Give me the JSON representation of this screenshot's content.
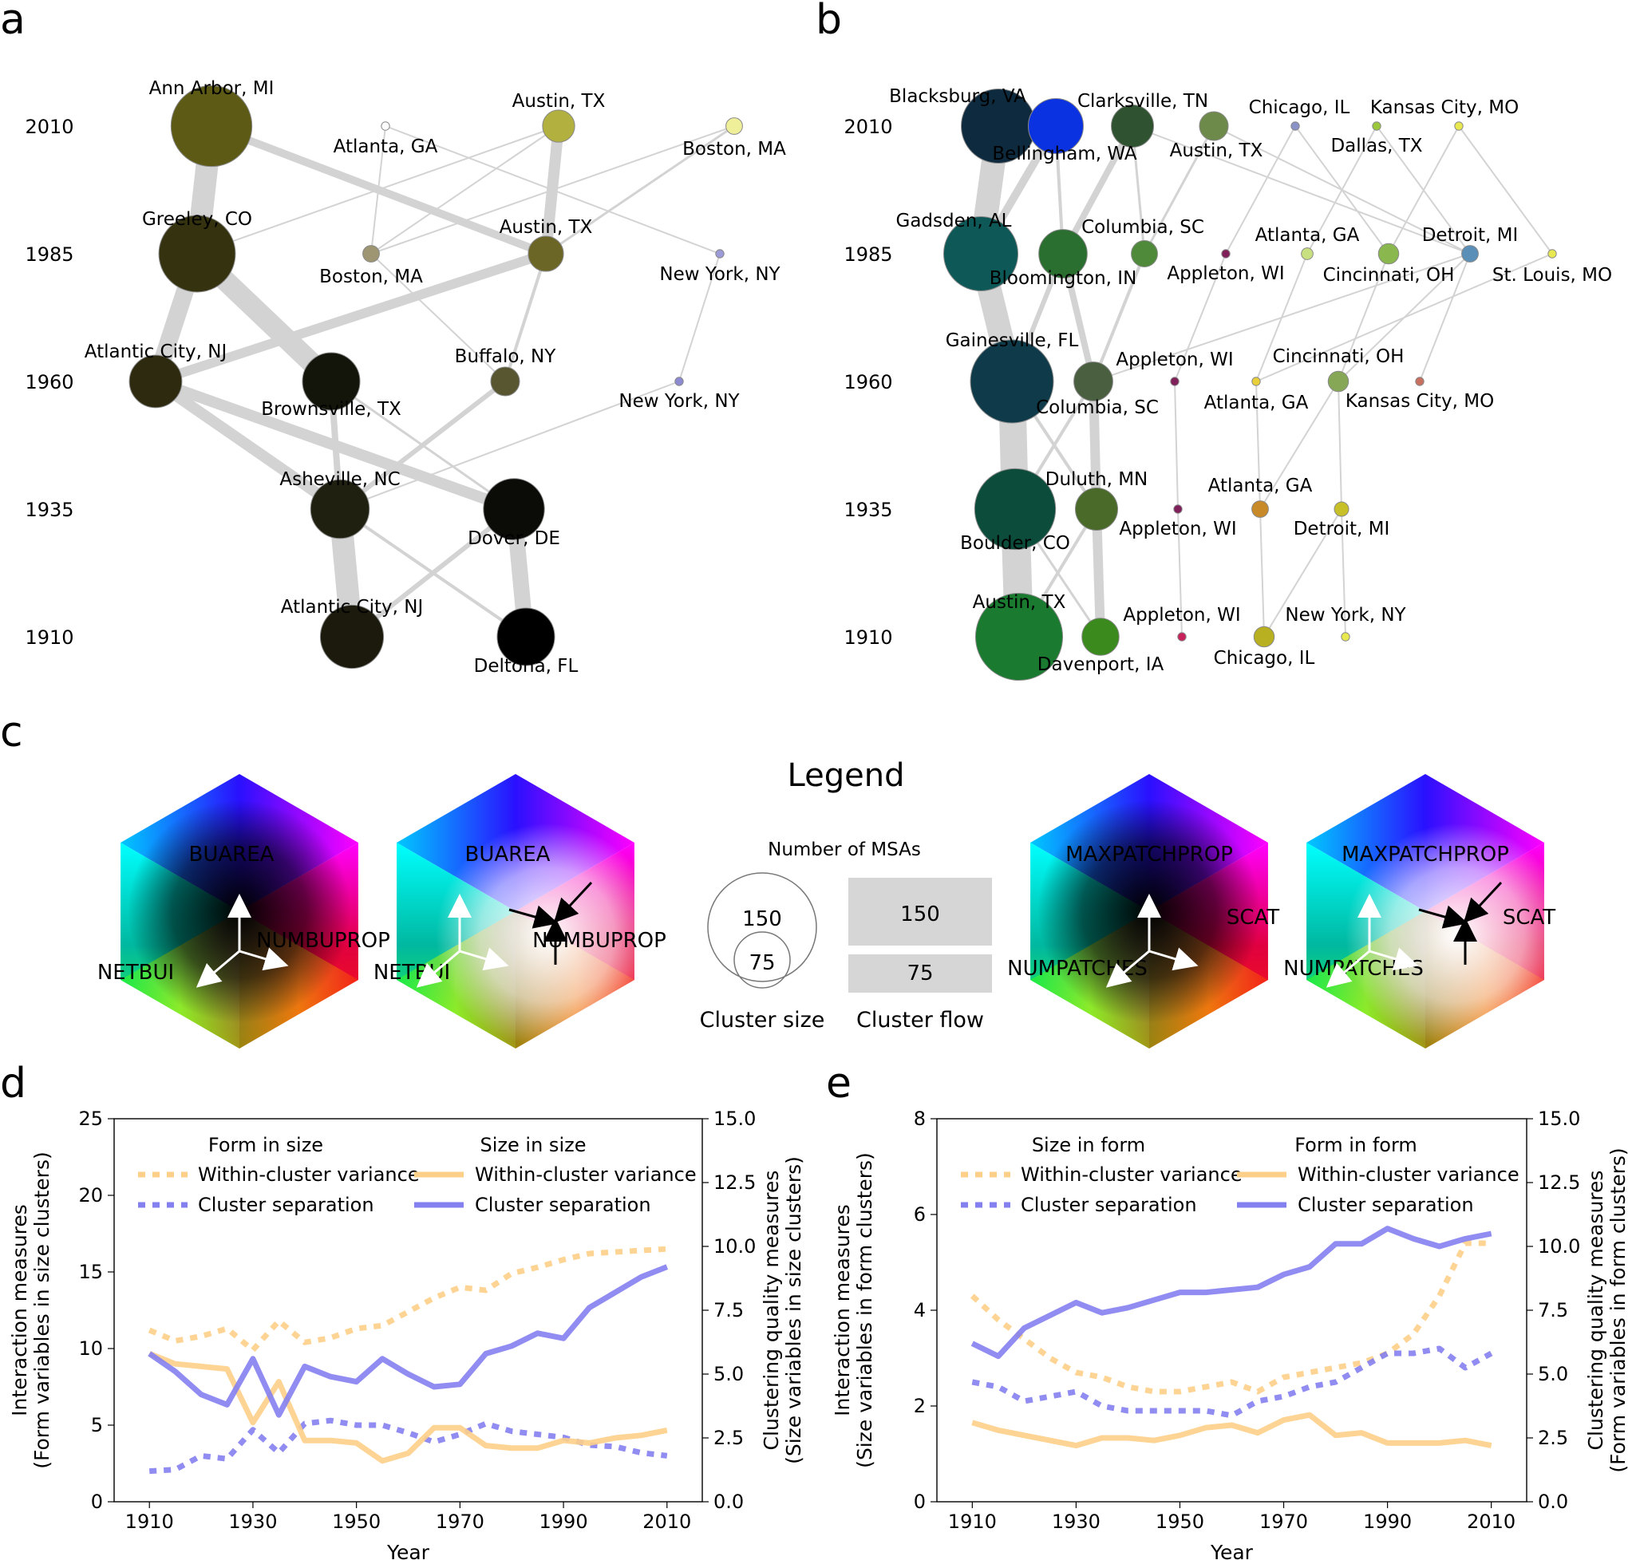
{
  "panels": {
    "a": "a",
    "b": "b",
    "c": "c",
    "d": "d",
    "e": "e"
  },
  "years": [
    "1910",
    "1935",
    "1960",
    "1985",
    "2010"
  ],
  "legend": {
    "title": "Legend",
    "msas": "Number of MSAs",
    "big": "150",
    "small": "75",
    "cluster_size": "Cluster size",
    "cluster_flow": "Cluster flow"
  },
  "cubes": [
    {
      "top": "BUAREA",
      "right": "NUMBUPROP",
      "left": "NETBUI",
      "variant": "size-dark"
    },
    {
      "top": "BUAREA",
      "right": "NUMBUPROP",
      "left": "NETBUI",
      "variant": "size-light"
    },
    {
      "top": "MAXPATCHPROP",
      "right": "SCAT",
      "left": "NUMPATCHES",
      "variant": "form-dark"
    },
    {
      "top": "MAXPATCHPROP",
      "right": "SCAT",
      "left": "NUMPATCHES",
      "variant": "form-light"
    }
  ],
  "net_a": {
    "nodes": [
      {
        "id": "a2010_1",
        "label": "Ann Arbor, MI",
        "year": 2010,
        "size": 95,
        "color": "#5c5a14"
      },
      {
        "id": "a2010_2",
        "label": "Atlanta, GA",
        "year": 2010,
        "size": 1,
        "color": "#ffffff"
      },
      {
        "id": "a2010_3",
        "label": "Austin, TX",
        "year": 2010,
        "size": 15,
        "color": "#b2b03e"
      },
      {
        "id": "a2010_4",
        "label": "Boston, MA",
        "year": 2010,
        "size": 4,
        "color": "#efef9a"
      },
      {
        "id": "a1985_1",
        "label": "Greeley, CO",
        "year": 1985,
        "size": 85,
        "color": "#35320f"
      },
      {
        "id": "a1985_2",
        "label": "Boston, MA",
        "year": 1985,
        "size": 4,
        "color": "#9e9572"
      },
      {
        "id": "a1985_3",
        "label": "Austin, TX",
        "year": 1985,
        "size": 18,
        "color": "#6b6625"
      },
      {
        "id": "a1985_4",
        "label": "New York, NY",
        "year": 1985,
        "size": 1,
        "color": "#9d9ad8"
      },
      {
        "id": "a1960_1",
        "label": "Atlantic City, NJ",
        "year": 1960,
        "size": 40,
        "color": "#2d2a10"
      },
      {
        "id": "a1960_2",
        "label": "Brownsville, TX",
        "year": 1960,
        "size": 48,
        "color": "#13150a"
      },
      {
        "id": "a1960_3",
        "label": "Buffalo, NY",
        "year": 1960,
        "size": 12,
        "color": "#585531"
      },
      {
        "id": "a1960_4",
        "label": "New York, NY",
        "year": 1960,
        "size": 1,
        "color": "#8d8ad2"
      },
      {
        "id": "a1935_1",
        "label": "Asheville, NC",
        "year": 1935,
        "size": 50,
        "color": "#1f200f"
      },
      {
        "id": "a1935_2",
        "label": "Dover, DE",
        "year": 1935,
        "size": 54,
        "color": "#0b0c07"
      },
      {
        "id": "a1910_1",
        "label": "Atlantic City, NJ",
        "year": 1910,
        "size": 58,
        "color": "#1b1a0c"
      },
      {
        "id": "a1910_2",
        "label": "Deltona, FL",
        "year": 1910,
        "size": 48,
        "color": "#000000"
      }
    ],
    "edges": [
      [
        "a1910_1",
        "a1935_1",
        28
      ],
      [
        "a1910_1",
        "a1935_2",
        6
      ],
      [
        "a1910_2",
        "a1935_2",
        20
      ],
      [
        "a1910_2",
        "a1935_1",
        4
      ],
      [
        "a1935_1",
        "a1960_1",
        14
      ],
      [
        "a1935_2",
        "a1960_1",
        14
      ],
      [
        "a1935_1",
        "a1960_2",
        8
      ],
      [
        "a1935_1",
        "a1960_3",
        6
      ],
      [
        "a1935_2",
        "a1960_2",
        3
      ],
      [
        "a1935_1",
        "a1960_4",
        2
      ],
      [
        "a1960_1",
        "a1985_1",
        22
      ],
      [
        "a1960_2",
        "a1985_1",
        26
      ],
      [
        "a1960_1",
        "a1985_3",
        12
      ],
      [
        "a1960_3",
        "a1985_3",
        4
      ],
      [
        "a1960_3",
        "a1985_2",
        2
      ],
      [
        "a1960_4",
        "a1985_4",
        2
      ],
      [
        "a1985_1",
        "a2010_1",
        28
      ],
      [
        "a1985_3",
        "a2010_1",
        10
      ],
      [
        "a1985_3",
        "a2010_3",
        14
      ],
      [
        "a1985_1",
        "a2010_3",
        2
      ],
      [
        "a1985_2",
        "a2010_2",
        2
      ],
      [
        "a1985_2",
        "a2010_3",
        2
      ],
      [
        "a1985_3",
        "a2010_4",
        3
      ],
      [
        "a1985_4",
        "a2010_2",
        2
      ],
      [
        "a1985_2",
        "a2010_4",
        2
      ]
    ]
  },
  "net_b": {
    "nodes": [
      {
        "id": "b2010_1",
        "label": "Blacksburg, VA",
        "year": 2010,
        "size": 80,
        "color": "#0e2a3e"
      },
      {
        "id": "b2010_2",
        "label": "Bellingham, WA",
        "year": 2010,
        "size": 44,
        "color": "#0a32e0"
      },
      {
        "id": "b2010_3",
        "label": "Clarksville, TN",
        "year": 2010,
        "size": 26,
        "color": "#2f5230"
      },
      {
        "id": "b2010_4",
        "label": "Austin, TX",
        "year": 2010,
        "size": 12,
        "color": "#6e8a4a"
      },
      {
        "id": "b2010_5",
        "label": "Chicago, IL",
        "year": 2010,
        "size": 1,
        "color": "#8a92c8"
      },
      {
        "id": "b2010_6",
        "label": "Dallas, TX",
        "year": 2010,
        "size": 1,
        "color": "#9ac83a"
      },
      {
        "id": "b2010_7",
        "label": "Kansas City, MO",
        "year": 2010,
        "size": 1,
        "color": "#e8e850"
      },
      {
        "id": "b1985_1",
        "label": "Gadsden, AL",
        "year": 1985,
        "size": 80,
        "color": "#0e5858"
      },
      {
        "id": "b1985_2",
        "label": "Bloomington, IN",
        "year": 1985,
        "size": 34,
        "color": "#2a6e30"
      },
      {
        "id": "b1985_3",
        "label": "Columbia, SC",
        "year": 1985,
        "size": 10,
        "color": "#4e8a3a"
      },
      {
        "id": "b1985_4",
        "label": "Appleton, WI",
        "year": 1985,
        "size": 1,
        "color": "#80205a"
      },
      {
        "id": "b1985_5",
        "label": "Atlanta, GA",
        "year": 1985,
        "size": 2,
        "color": "#c8e080"
      },
      {
        "id": "b1985_6",
        "label": "Cincinnati, OH",
        "year": 1985,
        "size": 6,
        "color": "#8ab84e"
      },
      {
        "id": "b1985_7",
        "label": "Detroit, MI",
        "year": 1985,
        "size": 4,
        "color": "#5a8fb8"
      },
      {
        "id": "b1985_8",
        "label": "St. Louis, MO",
        "year": 1985,
        "size": 1,
        "color": "#e8e850"
      },
      {
        "id": "b1960_1",
        "label": "Gainesville, FL",
        "year": 1960,
        "size": 100,
        "color": "#0e3a4a"
      },
      {
        "id": "b1960_2",
        "label": "Columbia, SC",
        "year": 1960,
        "size": 22,
        "color": "#4a5e40"
      },
      {
        "id": "b1960_3",
        "label": "Appleton, WI",
        "year": 1960,
        "size": 1,
        "color": "#80205a"
      },
      {
        "id": "b1960_4",
        "label": "Atlanta, GA",
        "year": 1960,
        "size": 1,
        "color": "#e8d03a"
      },
      {
        "id": "b1960_5",
        "label": "Cincinnati, OH",
        "year": 1960,
        "size": 6,
        "color": "#86a856"
      },
      {
        "id": "b1960_6",
        "label": "Kansas City, MO",
        "year": 1960,
        "size": 1,
        "color": "#c87060"
      },
      {
        "id": "b1935_1",
        "label": "Boulder, CO",
        "year": 1935,
        "size": 95,
        "color": "#0c4c3a"
      },
      {
        "id": "b1935_2",
        "label": "Duluth, MN",
        "year": 1935,
        "size": 26,
        "color": "#4a6a2a"
      },
      {
        "id": "b1935_3",
        "label": "Appleton, WI",
        "year": 1935,
        "size": 1,
        "color": "#80205a"
      },
      {
        "id": "b1935_4",
        "label": "Atlanta, GA",
        "year": 1935,
        "size": 4,
        "color": "#c88a28"
      },
      {
        "id": "b1935_5",
        "label": "Detroit, MI",
        "year": 1935,
        "size": 3,
        "color": "#c8c028"
      },
      {
        "id": "b1910_1",
        "label": "Austin, TX",
        "year": 1910,
        "size": 110,
        "color": "#1a7a30"
      },
      {
        "id": "b1910_2",
        "label": "Davenport, IA",
        "year": 1910,
        "size": 20,
        "color": "#3a8a1e"
      },
      {
        "id": "b1910_3",
        "label": "Appleton, WI",
        "year": 1910,
        "size": 1,
        "color": "#c8205a"
      },
      {
        "id": "b1910_4",
        "label": "Chicago, IL",
        "year": 1910,
        "size": 6,
        "color": "#b8b020"
      },
      {
        "id": "b1910_5",
        "label": "New York, NY",
        "year": 1910,
        "size": 1,
        "color": "#e8e850"
      }
    ],
    "edges": [
      [
        "b1910_1",
        "b1935_1",
        36
      ],
      [
        "b1910_2",
        "b1935_2",
        12
      ],
      [
        "b1910_1",
        "b1935_2",
        4
      ],
      [
        "b1910_3",
        "b1935_3",
        2
      ],
      [
        "b1910_4",
        "b1935_4",
        2
      ],
      [
        "b1910_4",
        "b1935_5",
        2
      ],
      [
        "b1910_5",
        "b1935_5",
        2
      ],
      [
        "b1910_2",
        "b1935_1",
        3
      ],
      [
        "b1935_1",
        "b1960_1",
        34
      ],
      [
        "b1935_2",
        "b1960_2",
        12
      ],
      [
        "b1935_1",
        "b1960_2",
        4
      ],
      [
        "b1935_3",
        "b1960_3",
        2
      ],
      [
        "b1935_4",
        "b1960_4",
        2
      ],
      [
        "b1935_4",
        "b1960_5",
        2
      ],
      [
        "b1935_5",
        "b1960_5",
        2
      ],
      [
        "b1935_2",
        "b1960_1",
        4
      ],
      [
        "b1960_1",
        "b1985_1",
        30
      ],
      [
        "b1960_2",
        "b1985_2",
        8
      ],
      [
        "b1960_1",
        "b1985_2",
        6
      ],
      [
        "b1960_2",
        "b1985_3",
        4
      ],
      [
        "b1960_3",
        "b1985_4",
        2
      ],
      [
        "b1960_4",
        "b1985_5",
        2
      ],
      [
        "b1960_5",
        "b1985_6",
        2
      ],
      [
        "b1960_6",
        "b1985_7",
        2
      ],
      [
        "b1960_2",
        "b1985_7",
        2
      ],
      [
        "b1960_4",
        "b1985_8",
        2
      ],
      [
        "b1960_5",
        "b1985_7",
        2
      ],
      [
        "b1985_1",
        "b2010_1",
        30
      ],
      [
        "b1985_1",
        "b2010_2",
        10
      ],
      [
        "b1985_2",
        "b2010_3",
        8
      ],
      [
        "b1985_2",
        "b2010_2",
        4
      ],
      [
        "b1985_3",
        "b2010_3",
        3
      ],
      [
        "b1985_3",
        "b2010_4",
        3
      ],
      [
        "b1985_5",
        "b2010_6",
        2
      ],
      [
        "b1985_6",
        "b2010_7",
        2
      ],
      [
        "b1985_7",
        "b2010_4",
        2
      ],
      [
        "b1985_7",
        "b2010_3",
        2
      ],
      [
        "b1985_6",
        "b2010_5",
        2
      ],
      [
        "b1985_4",
        "b2010_5",
        2
      ],
      [
        "b1985_7",
        "b2010_6",
        2
      ],
      [
        "b1985_8",
        "b2010_7",
        2
      ]
    ]
  },
  "chart_data": [
    {
      "type": "line",
      "panel": "d",
      "xlabel": "Year",
      "ylabel_left": "Interaction measures",
      "ylabel_left2": "(Form variables in size clusters)",
      "ylabel_right": "Clustering quality measures",
      "ylabel_right2": "(Size variables in size clusters)",
      "xlim": [
        1910,
        2010
      ],
      "ylim_left": [
        0,
        25
      ],
      "ylim_right": [
        0,
        15
      ],
      "xticks": [
        "1910",
        "1930",
        "1950",
        "1970",
        "1990",
        "2010"
      ],
      "yticks_left": [
        "0",
        "5",
        "10",
        "15",
        "20",
        "25"
      ],
      "yticks_right": [
        "0.0",
        "2.5",
        "5.0",
        "7.5",
        "10.0",
        "12.5",
        "15.0"
      ],
      "legend_group1": "Form in size",
      "legend_group2": "Size in size",
      "x": [
        1910,
        1915,
        1920,
        1925,
        1930,
        1935,
        1940,
        1945,
        1950,
        1955,
        1960,
        1965,
        1970,
        1975,
        1980,
        1985,
        1990,
        1995,
        2000,
        2005,
        2010
      ],
      "series": [
        {
          "name": "Within-cluster variance",
          "group": "Form in size",
          "axis": "left",
          "style": "dotted",
          "color": "#fdcf88",
          "values": [
            11.2,
            10.5,
            10.8,
            11.3,
            9.9,
            11.8,
            10.4,
            10.7,
            11.3,
            11.5,
            12.4,
            13.3,
            14.0,
            13.8,
            14.9,
            15.3,
            15.8,
            16.2,
            16.3,
            16.4,
            16.5
          ]
        },
        {
          "name": "Cluster separation",
          "group": "Form in size",
          "axis": "left",
          "style": "dotted",
          "color": "#8480f0",
          "values": [
            2.0,
            2.1,
            3.0,
            2.8,
            4.7,
            3.2,
            5.1,
            5.3,
            5.0,
            5.0,
            4.5,
            3.9,
            4.4,
            5.1,
            4.6,
            4.4,
            4.2,
            3.7,
            3.6,
            3.2,
            3.0
          ]
        },
        {
          "name": "Within-cluster variance",
          "group": "Size in size",
          "axis": "right",
          "style": "solid",
          "color": "#fdcf88",
          "values": [
            5.8,
            5.4,
            5.3,
            5.2,
            3.1,
            4.7,
            2.4,
            2.4,
            2.3,
            1.6,
            1.9,
            2.9,
            2.9,
            2.2,
            2.1,
            2.1,
            2.4,
            2.3,
            2.5,
            2.6,
            2.8
          ]
        },
        {
          "name": "Cluster separation",
          "group": "Size in size",
          "axis": "right",
          "style": "solid",
          "color": "#8480f0",
          "values": [
            5.8,
            5.1,
            4.2,
            3.8,
            5.6,
            3.4,
            5.3,
            4.9,
            4.7,
            5.6,
            5.0,
            4.5,
            4.6,
            5.8,
            6.1,
            6.6,
            6.4,
            7.6,
            8.2,
            8.8,
            9.2
          ]
        }
      ]
    },
    {
      "type": "line",
      "panel": "e",
      "xlabel": "Year",
      "ylabel_left": "Interaction measures",
      "ylabel_left2": "(Size variables in form clusters)",
      "ylabel_right": "Clustering quality measures",
      "ylabel_right2": "(Form variables in form clusters)",
      "xlim": [
        1910,
        2010
      ],
      "ylim_left": [
        0,
        8
      ],
      "ylim_right": [
        0,
        15
      ],
      "xticks": [
        "1910",
        "1930",
        "1950",
        "1970",
        "1990",
        "2010"
      ],
      "yticks_left": [
        "0",
        "2",
        "4",
        "6",
        "8"
      ],
      "yticks_right": [
        "0.0",
        "2.5",
        "5.0",
        "7.5",
        "10.0",
        "12.5",
        "15.0"
      ],
      "legend_group1": "Size in form",
      "legend_group2": "Form in form",
      "x": [
        1910,
        1915,
        1920,
        1925,
        1930,
        1935,
        1940,
        1945,
        1950,
        1955,
        1960,
        1965,
        1970,
        1975,
        1980,
        1985,
        1990,
        1995,
        2000,
        2005,
        2010
      ],
      "series": [
        {
          "name": "Within-cluster variance",
          "group": "Size in form",
          "axis": "left",
          "style": "dotted",
          "color": "#fdcf88",
          "values": [
            4.3,
            3.8,
            3.4,
            3.0,
            2.7,
            2.6,
            2.4,
            2.3,
            2.3,
            2.4,
            2.5,
            2.3,
            2.6,
            2.7,
            2.8,
            2.9,
            3.1,
            3.5,
            4.3,
            5.4,
            5.4
          ]
        },
        {
          "name": "Cluster separation",
          "group": "Size in form",
          "axis": "left",
          "style": "dotted",
          "color": "#8480f0",
          "values": [
            2.5,
            2.4,
            2.1,
            2.2,
            2.3,
            2.0,
            1.9,
            1.9,
            1.9,
            1.9,
            1.8,
            2.1,
            2.2,
            2.4,
            2.5,
            2.8,
            3.1,
            3.1,
            3.2,
            2.8,
            3.1
          ]
        },
        {
          "name": "Within-cluster variance",
          "group": "Form in form",
          "axis": "right",
          "style": "solid",
          "color": "#fdcf88",
          "values": [
            3.1,
            2.8,
            2.6,
            2.4,
            2.2,
            2.5,
            2.5,
            2.4,
            2.6,
            2.9,
            3.0,
            2.7,
            3.2,
            3.4,
            2.6,
            2.7,
            2.3,
            2.3,
            2.3,
            2.4,
            2.2
          ]
        },
        {
          "name": "Cluster separation",
          "group": "Form in form",
          "axis": "right",
          "style": "solid",
          "color": "#8480f0",
          "values": [
            6.2,
            5.7,
            6.8,
            7.3,
            7.8,
            7.4,
            7.6,
            7.9,
            8.2,
            8.2,
            8.3,
            8.4,
            8.9,
            9.2,
            10.1,
            10.1,
            10.7,
            10.3,
            10.0,
            10.3,
            10.5
          ]
        }
      ]
    }
  ],
  "legend_labels": {
    "wcv": "Within-cluster variance",
    "sep": "Cluster separation"
  }
}
